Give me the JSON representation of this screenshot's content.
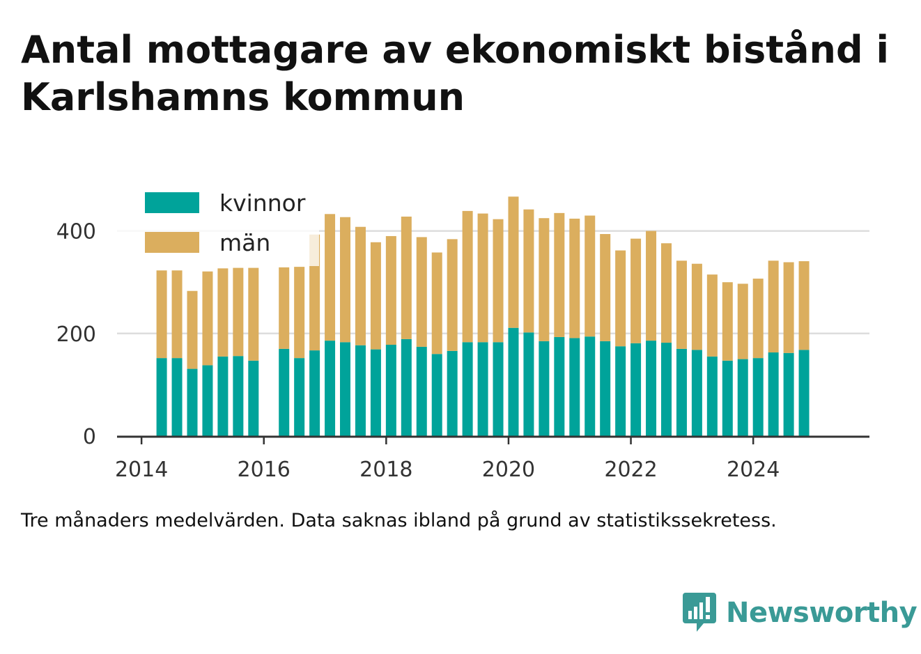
{
  "title": "Antal mottagare av ekonomiskt bistånd i Karlshamns kommun",
  "footnote": "Tre månaders medelvärden. Data saknas ibland på grund av statistikssekretess.",
  "brand": {
    "name": "Newsworthy",
    "icon": "newsworthy-bar-chart-icon"
  },
  "colors": {
    "kvinnor": "#00a39a",
    "man": "#dbae5e",
    "grid": "#dddddd",
    "axis": "#333333"
  },
  "chart_data": {
    "type": "bar",
    "stacked": true,
    "title": "Antal mottagare av ekonomiskt bistånd i Karlshamns kommun",
    "xlabel": "",
    "ylabel": "",
    "ylim": [
      0,
      500
    ],
    "xlim": [
      2013.6,
      2025.9
    ],
    "y_ticks": [
      0,
      200,
      400
    ],
    "x_ticks": [
      "2014",
      "2016",
      "2018",
      "2020",
      "2022",
      "2024"
    ],
    "x_tick_values": [
      2014,
      2016,
      2018,
      2020,
      2022,
      2024
    ],
    "grid": true,
    "legend_position": "top-left",
    "x": [
      2014.33,
      2014.58,
      2014.83,
      2015.08,
      2015.33,
      2015.58,
      2015.83,
      2016.08,
      2016.33,
      2016.58,
      2016.83,
      2017.08,
      2017.33,
      2017.58,
      2017.83,
      2018.08,
      2018.33,
      2018.58,
      2018.83,
      2019.08,
      2019.33,
      2019.58,
      2019.83,
      2020.08,
      2020.33,
      2020.58,
      2020.83,
      2021.08,
      2021.33,
      2021.58,
      2021.83,
      2022.08,
      2022.33,
      2022.58,
      2022.83,
      2023.08,
      2023.33,
      2023.58,
      2023.83,
      2024.08,
      2024.33,
      2024.58,
      2024.83
    ],
    "series": [
      {
        "name": "kvinnor",
        "values": [
          152,
          152,
          131,
          138,
          155,
          156,
          147,
          null,
          170,
          152,
          167,
          186,
          183,
          177,
          169,
          178,
          189,
          174,
          160,
          166,
          183,
          183,
          183,
          211,
          202,
          185,
          193,
          191,
          194,
          185,
          175,
          181,
          186,
          182,
          170,
          168,
          155,
          147,
          150,
          152,
          163,
          162,
          168
        ]
      },
      {
        "name": "män",
        "values": [
          171,
          171,
          152,
          183,
          172,
          172,
          181,
          null,
          159,
          178,
          226,
          247,
          244,
          231,
          209,
          212,
          239,
          214,
          198,
          218,
          256,
          251,
          240,
          256,
          240,
          240,
          242,
          233,
          236,
          209,
          187,
          204,
          214,
          194,
          172,
          168,
          160,
          153,
          147,
          155,
          179,
          177,
          173
        ]
      }
    ]
  }
}
